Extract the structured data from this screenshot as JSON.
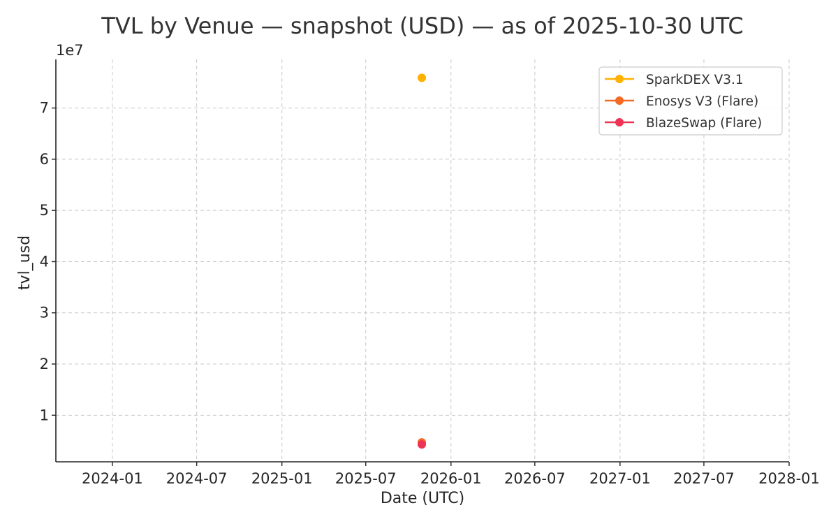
{
  "chart_data": {
    "type": "scatter",
    "title": "TVL by Venue — snapshot (USD) — as of 2025-10-30 UTC",
    "xlabel": "Date (UTC)",
    "ylabel": "tvl_usd",
    "y_offset_label": "1e7",
    "x_ticks": [
      "2024-01",
      "2024-07",
      "2025-01",
      "2025-07",
      "2026-01",
      "2026-07",
      "2027-01",
      "2027-07",
      "2028-01"
    ],
    "y_ticks": [
      1,
      2,
      3,
      4,
      5,
      6,
      7
    ],
    "y_tick_scale": 10000000,
    "xlim": [
      "2023-09-01",
      "2028-01-01"
    ],
    "ylim": [
      900000,
      79500000
    ],
    "grid": true,
    "legend_position": "top-right",
    "series": [
      {
        "name": "SparkDEX V3.1",
        "color": "#FFB000",
        "points": [
          {
            "x": "2025-10-30",
            "y": 75900000
          }
        ]
      },
      {
        "name": "Enosys V3 (Flare)",
        "color": "#F26A23",
        "points": [
          {
            "x": "2025-10-30",
            "y": 4700000
          }
        ]
      },
      {
        "name": "BlazeSwap (Flare)",
        "color": "#EE3355",
        "points": [
          {
            "x": "2025-10-30",
            "y": 4300000
          }
        ]
      }
    ]
  }
}
